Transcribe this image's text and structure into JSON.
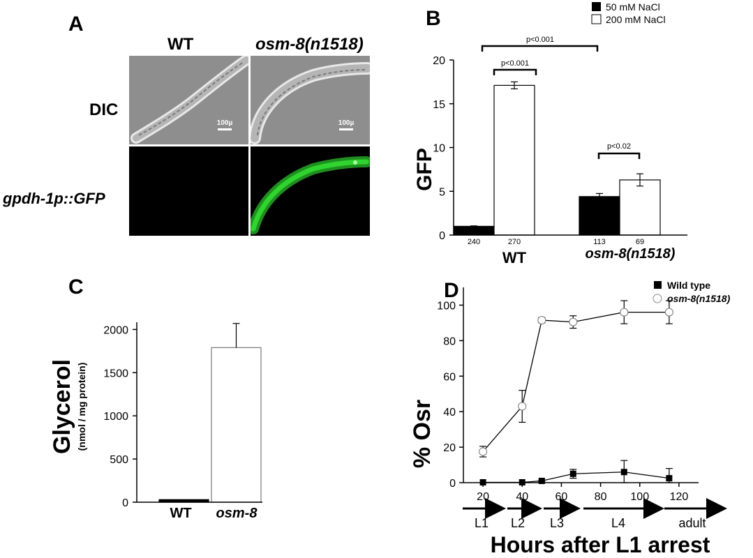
{
  "panelA": {
    "letter": "A",
    "col_wt": "WT",
    "col_mut": "osm-8(n1518)",
    "row_dic": "DIC",
    "row_gfp": "gpdh-1p::GFP",
    "scalebar_wt": "100µ",
    "scalebar_mut": "100µ",
    "colors": {
      "dic_bg": "#8e8e8e",
      "gfp_bg": "#000000",
      "gfp_signal": "#2fd42f"
    }
  },
  "panelB": {
    "letter": "B",
    "sig_top": "p<0.001",
    "sig_wt": "p<0.001",
    "sig_mut": "p<0.02",
    "group_wt": "WT",
    "group_mut": "osm-8(n1518)",
    "chart_data": {
      "type": "bar",
      "categories": [
        "WT",
        "osm-8(n1518)"
      ],
      "series": [
        {
          "name": "50 mM NaCl",
          "color": "#000000",
          "values": [
            1.0,
            4.4
          ],
          "errors": [
            0.05,
            0.35
          ],
          "n": [
            "240",
            "113"
          ]
        },
        {
          "name": "200 mM NaCl",
          "color": "#ffffff",
          "values": [
            17.1,
            6.3
          ],
          "errors": [
            0.4,
            0.7
          ],
          "n": [
            "270",
            "69"
          ]
        }
      ],
      "ylabel": "GFP",
      "ylim": [
        0,
        20
      ],
      "yticks": [
        "0",
        "5",
        "10",
        "15",
        "20"
      ],
      "legend": "top-right"
    }
  },
  "panelC": {
    "letter": "C",
    "chart_data": {
      "type": "bar",
      "categories": [
        "WT",
        "osm-8"
      ],
      "values": [
        30,
        1790
      ],
      "errors": [
        5,
        280
      ],
      "colors": [
        "#000000",
        "#ffffff"
      ],
      "ylabel": "Glycerol",
      "ylabel_sub": "(nmol / mg protein)",
      "ylim": [
        0,
        2100
      ],
      "yticks": [
        "0",
        "500",
        "1000",
        "1500",
        "2000"
      ]
    }
  },
  "panelD": {
    "letter": "D",
    "stages": [
      "L1",
      "L2",
      "L3",
      "L4",
      "adult"
    ],
    "chart_data": {
      "type": "line",
      "series": [
        {
          "name": "Wild type",
          "marker": "filled-square",
          "x": [
            20,
            40,
            50,
            66,
            92,
            115
          ],
          "y": [
            0.2,
            0.2,
            1,
            5,
            6,
            2.5
          ],
          "errors": [
            0,
            0,
            0.5,
            2.5,
            6.5,
            5.5
          ]
        },
        {
          "name": "osm-8(n1518)",
          "marker": "open-circle",
          "x": [
            20,
            40,
            50,
            66,
            92,
            115
          ],
          "y": [
            17.5,
            43,
            91.5,
            90.5,
            96,
            96
          ],
          "errors": [
            3,
            9,
            1.5,
            3.5,
            6.5,
            6.5
          ]
        }
      ],
      "xlabel": "Hours after L1 arrest",
      "ylabel": "% Osr",
      "xlim": [
        10,
        130
      ],
      "ylim": [
        0,
        110
      ],
      "xticks": [
        "20",
        "40",
        "60",
        "80",
        "100",
        "120"
      ],
      "yticks": [
        "0",
        "20",
        "40",
        "60",
        "80",
        "100"
      ],
      "legend": "top-right"
    }
  }
}
